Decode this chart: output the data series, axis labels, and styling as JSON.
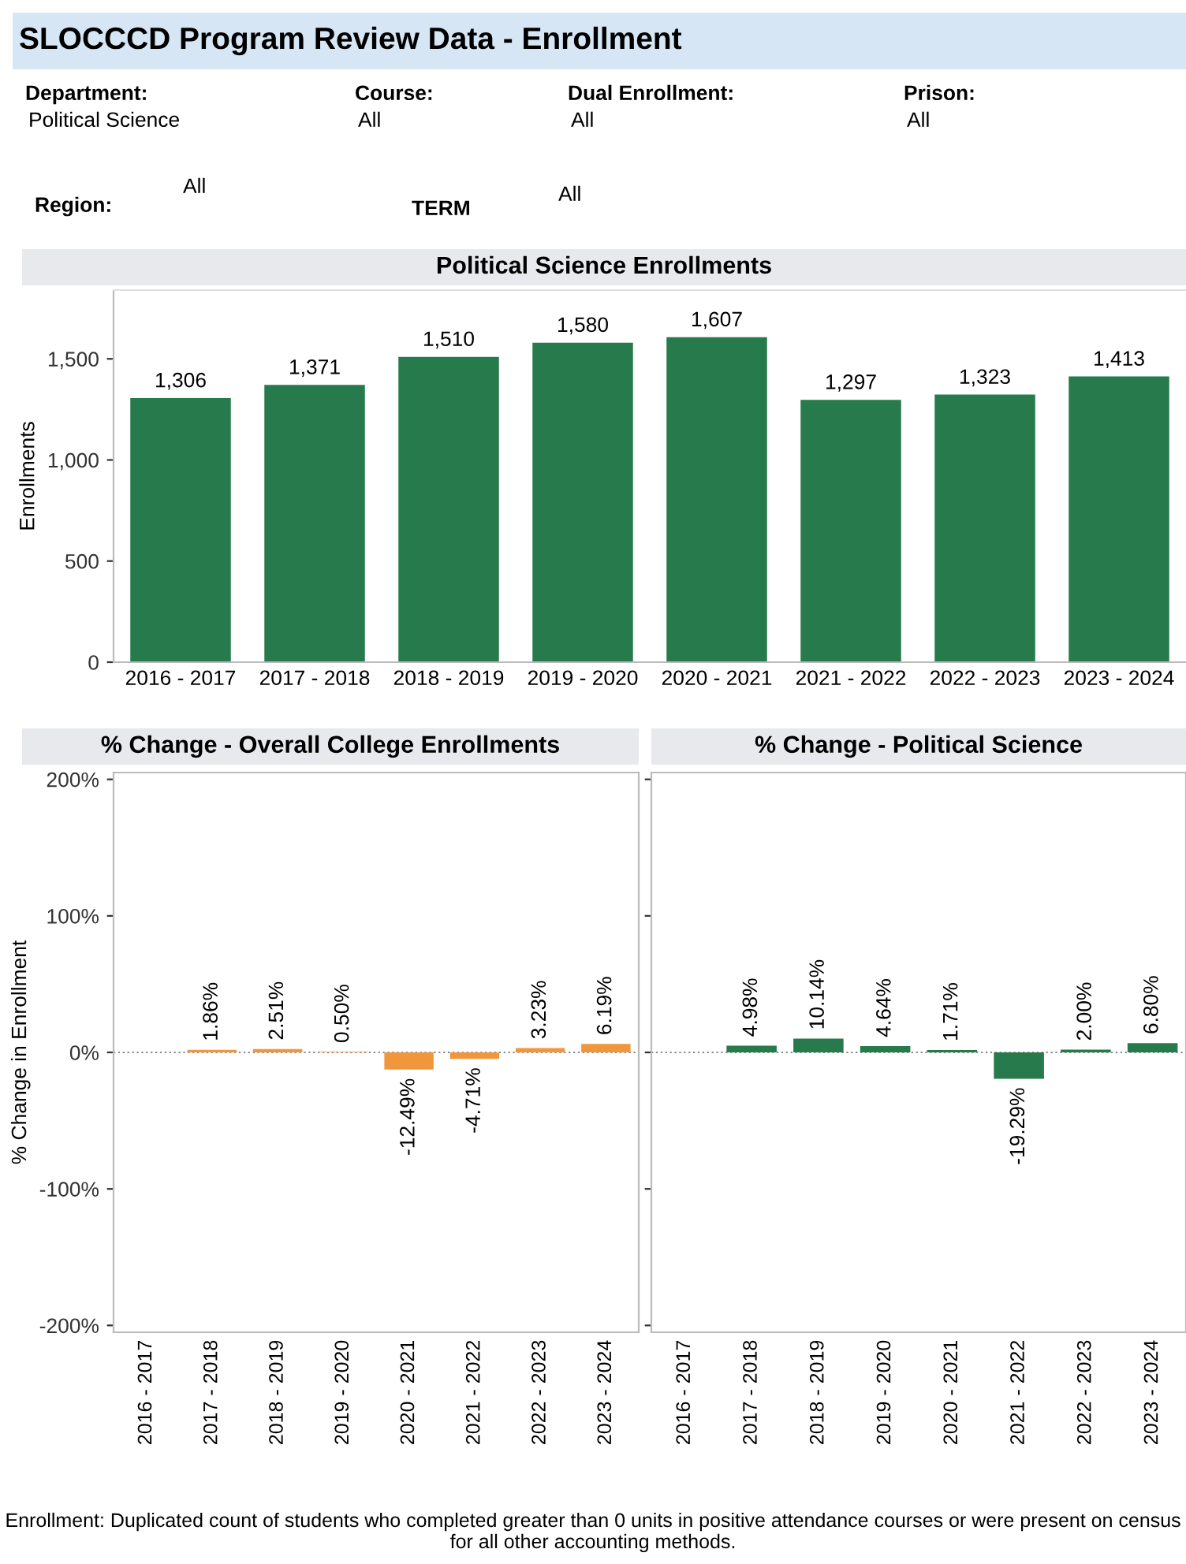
{
  "chart_data": [
    {
      "type": "other",
      "title": "SLOCCCD Program Review Data - Enrollment",
      "annotations": [
        "Department:",
        "Political Science",
        "Course:",
        "All",
        "Dual Enrollment:",
        "All",
        "Prison:",
        "All",
        "Region:",
        "All",
        "TERM",
        "All"
      ]
    },
    {
      "type": "bar",
      "title": "Political Science Enrollments",
      "ylabel": "Enrollments",
      "categories": [
        "2016 - 2017",
        "2017 - 2018",
        "2018 - 2019",
        "2019 - 2020",
        "2020 - 2021",
        "2021 - 2022",
        "2022 - 2023",
        "2023 - 2024"
      ],
      "values": [
        1306,
        1371,
        1510,
        1580,
        1607,
        1297,
        1323,
        1413
      ],
      "value_labels": [
        "1,306",
        "1,371",
        "1,510",
        "1,580",
        "1,607",
        "1,297",
        "1,323",
        "1,413"
      ],
      "color": "#277a4c",
      "ylim": [
        0,
        1840
      ],
      "yticks": [
        0,
        500,
        {
          "value": 1000,
          "label": "1,000"
        },
        {
          "value": 1500,
          "label": "1,500"
        }
      ],
      "grid": false,
      "legend": false
    },
    {
      "type": "bar",
      "title": "% Change - Overall College Enrollments",
      "ylabel": "% Change in Enrollment",
      "categories": [
        "2016 - 2017",
        "2017 - 2018",
        "2018 - 2019",
        "2019 - 2020",
        "2020 - 2021",
        "2021 - 2022",
        "2022 - 2023",
        "2023 - 2024"
      ],
      "values": [
        null,
        1.86,
        2.51,
        0.5,
        -12.49,
        -4.71,
        3.23,
        6.19
      ],
      "value_labels": [
        null,
        "1.86%",
        "2.51%",
        "0.50%",
        "-12.49%",
        "-4.71%",
        "3.23%",
        "6.19%"
      ],
      "color": "#f0973e",
      "ylim": [
        -205,
        205
      ],
      "yticks": [
        {
          "value": -200,
          "label": "-200%"
        },
        {
          "value": -100,
          "label": "-100%"
        },
        {
          "value": 0,
          "label": "0%"
        },
        {
          "value": 100,
          "label": "100%"
        },
        {
          "value": 200,
          "label": "200%"
        }
      ],
      "ref_lines": [
        {
          "axis": "y",
          "value": 0,
          "line_style": "dotted",
          "color": "#888888"
        }
      ],
      "grid": false,
      "legend": false
    },
    {
      "type": "bar",
      "title": "% Change - Political Science",
      "categories": [
        "2016 - 2017",
        "2017 - 2018",
        "2018 - 2019",
        "2019 - 2020",
        "2020 - 2021",
        "2021 - 2022",
        "2022 - 2023",
        "2023 - 2024"
      ],
      "values": [
        null,
        4.98,
        10.14,
        4.64,
        1.71,
        -19.29,
        2.0,
        6.8
      ],
      "value_labels": [
        null,
        "4.98%",
        "10.14%",
        "4.64%",
        "1.71%",
        "-19.29%",
        "2.00%",
        "6.80%"
      ],
      "color": "#277a4c",
      "ylim": [
        -205,
        205
      ],
      "ref_lines": [
        {
          "axis": "y",
          "value": 0,
          "line_style": "dotted",
          "color": "#888888"
        }
      ],
      "tick_labels": "x",
      "grid": false,
      "legend": false,
      "yticks": [
        {
          "value": -200,
          "label": null
        },
        {
          "value": -100,
          "label": null
        },
        {
          "value": 0,
          "label": null
        },
        {
          "value": 100,
          "label": null
        },
        {
          "value": 200,
          "label": null
        }
      ],
      "annotations": [
        "Enrollment: Duplicated count of students who completed greater than 0 units in positive attendance courses or were present on census for all other accounting methods."
      ]
    }
  ]
}
